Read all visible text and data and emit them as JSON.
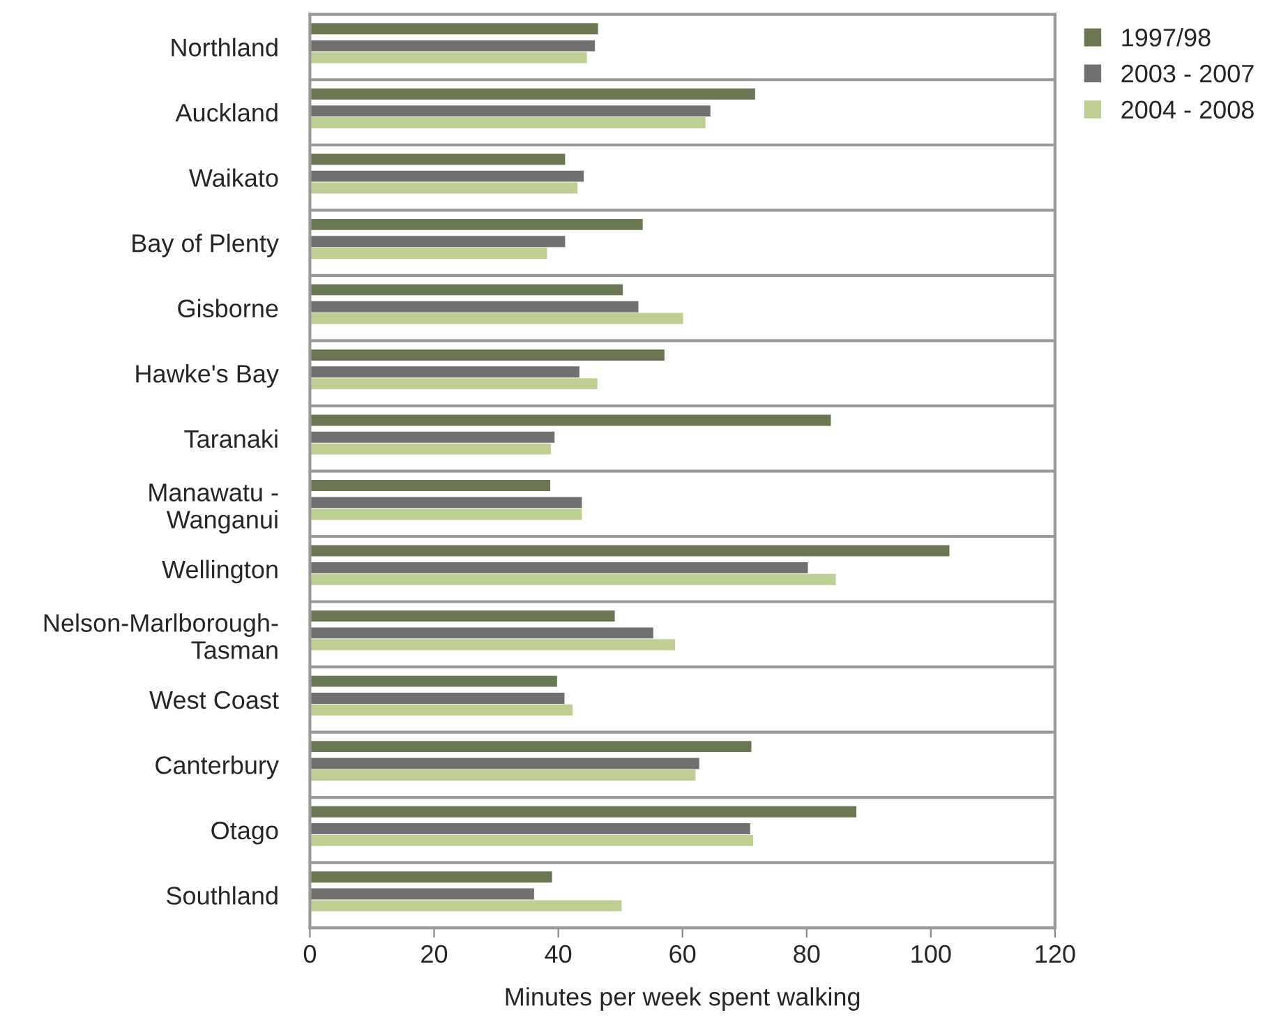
{
  "chart_data": {
    "type": "bar",
    "orientation": "horizontal",
    "xlabel": "Minutes per week spent walking",
    "categories": [
      "Northland",
      "Auckland",
      "Waikato",
      "Bay of Plenty",
      "Gisborne",
      "Hawke's Bay",
      "Taranaki",
      "Manawatu -\nWanganui",
      "Wellington",
      "Nelson-Marlborough-\nTasman",
      "West Coast",
      "Canterbury",
      "Otago",
      "Southland"
    ],
    "series": [
      {
        "name": "1997/98",
        "color": "#6b7652",
        "values": [
          46.4,
          71.7,
          41.1,
          53.6,
          50.4,
          57.1,
          83.9,
          38.7,
          103,
          49.1,
          39.8,
          71.1,
          88.0,
          39.0
        ]
      },
      {
        "name": "2003 - 2007",
        "color": "#707070",
        "values": [
          45.9,
          64.5,
          44.1,
          41.1,
          52.9,
          43.4,
          39.4,
          43.8,
          80.2,
          55.3,
          41.0,
          62.7,
          70.9,
          36.1
        ]
      },
      {
        "name": "2004 - 2008",
        "color": "#bfcf94",
        "values": [
          44.6,
          63.7,
          43.1,
          38.2,
          60.1,
          46.3,
          38.8,
          43.8,
          84.7,
          58.8,
          42.3,
          62.1,
          71.4,
          50.2
        ]
      }
    ],
    "xlim": [
      0,
      120
    ],
    "xticks": [
      0,
      20,
      40,
      60,
      80,
      100,
      120
    ],
    "grid": "y",
    "legend": "top right"
  }
}
